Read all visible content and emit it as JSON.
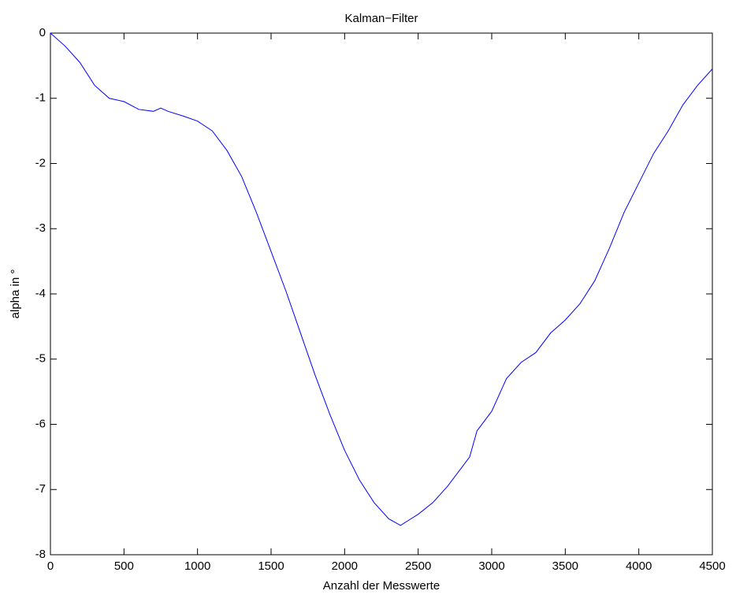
{
  "chart_data": {
    "type": "line",
    "title": "Kalman−Filter",
    "xlabel": "Anzahl der Messwerte",
    "ylabel": "alpha in °",
    "x": [
      0,
      100,
      200,
      300,
      400,
      500,
      600,
      700,
      750,
      800,
      900,
      1000,
      1100,
      1200,
      1300,
      1400,
      1500,
      1600,
      1700,
      1800,
      1900,
      2000,
      2100,
      2200,
      2300,
      2380,
      2450,
      2500,
      2600,
      2700,
      2800,
      2850,
      2900,
      3000,
      3100,
      3200,
      3300,
      3400,
      3500,
      3600,
      3700,
      3800,
      3900,
      4000,
      4100,
      4200,
      4300,
      4400,
      4500
    ],
    "series": [
      {
        "color": "#0000ff",
        "values": [
          0,
          -0.2,
          -0.45,
          -0.8,
          -1.0,
          -1.05,
          -1.17,
          -1.2,
          -1.15,
          -1.2,
          -1.27,
          -1.35,
          -1.5,
          -1.8,
          -2.2,
          -2.75,
          -3.35,
          -3.95,
          -4.6,
          -5.25,
          -5.85,
          -6.4,
          -6.85,
          -7.2,
          -7.45,
          -7.55,
          -7.45,
          -7.38,
          -7.2,
          -6.95,
          -6.65,
          -6.5,
          -6.1,
          -5.8,
          -5.3,
          -5.05,
          -4.9,
          -4.6,
          -4.4,
          -4.15,
          -3.8,
          -3.3,
          -2.75,
          -2.3,
          -1.85,
          -1.5,
          -1.1,
          -0.8,
          -0.55
        ]
      }
    ],
    "xlim": [
      0,
      4500
    ],
    "xticks": [
      0,
      500,
      1000,
      1500,
      2000,
      2500,
      3000,
      3500,
      4000,
      4500
    ],
    "ylim": [
      -8,
      0
    ],
    "yticks": [
      0,
      -1,
      -2,
      -3,
      -4,
      -5,
      -6,
      -7,
      -8
    ],
    "grid": false
  }
}
